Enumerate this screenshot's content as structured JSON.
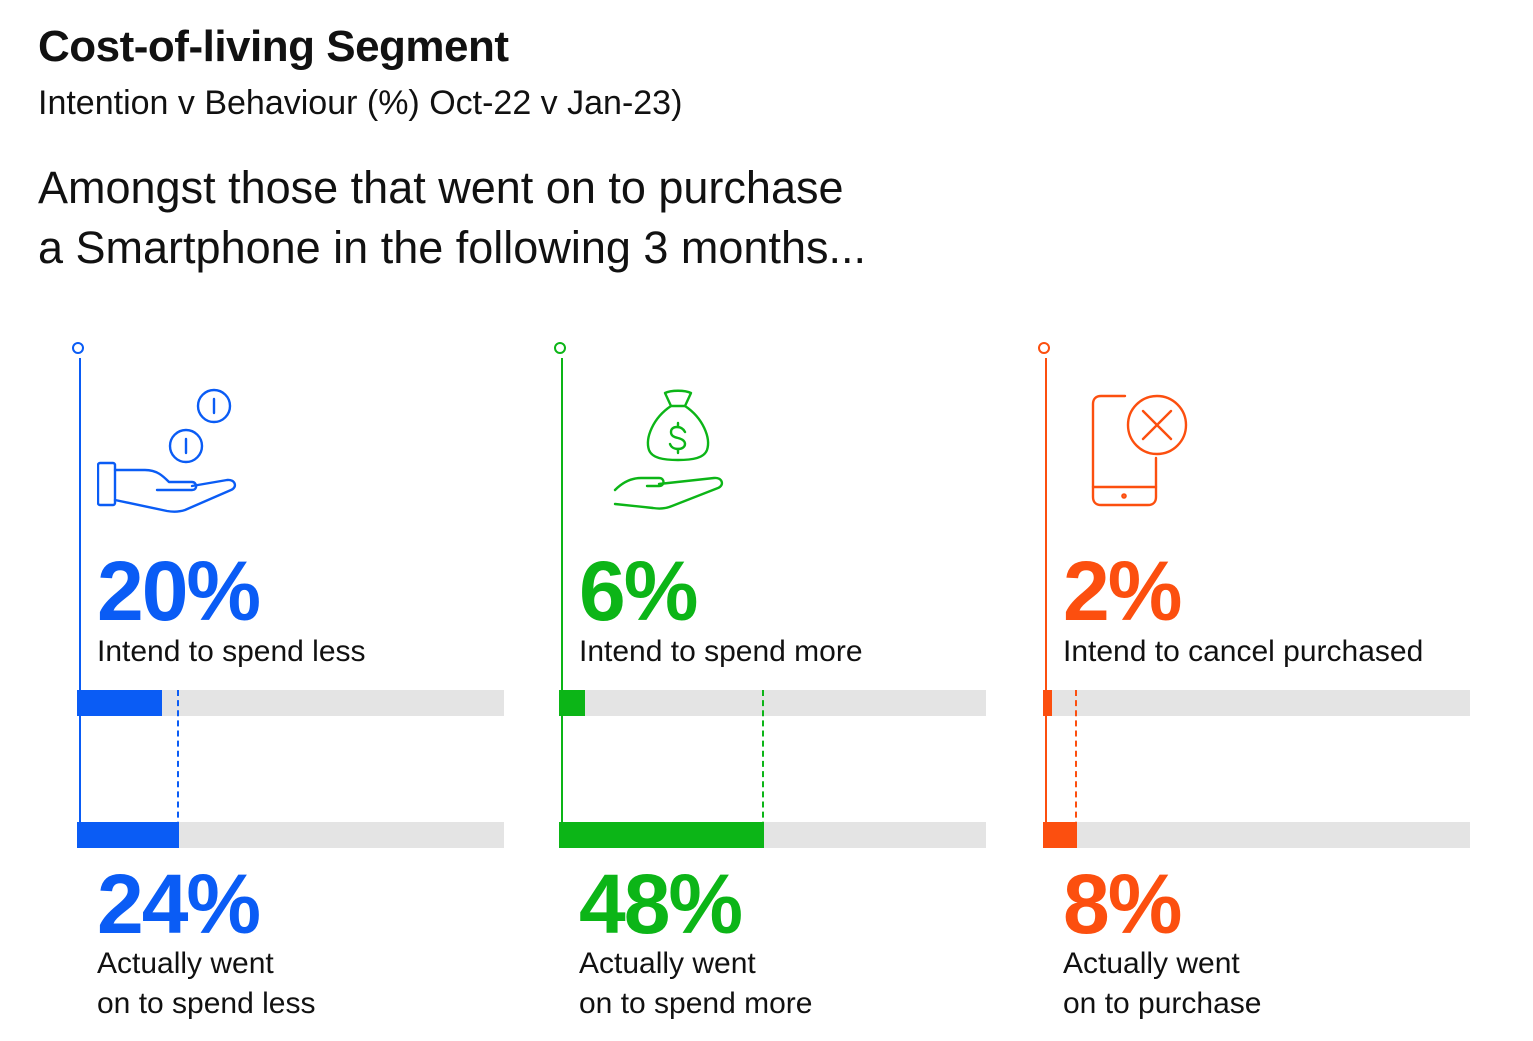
{
  "title": "Cost-of-living Segment",
  "subtitle": "Intention v Behaviour (%) Oct-22 v Jan-23)",
  "lead": {
    "line1": "Amongst those that went on to purchase",
    "line2": "a Smartphone in the following 3 months..."
  },
  "colors": {
    "blue": "#0a5cf5",
    "green": "#0cb517",
    "orange": "#fc4f0f",
    "track": "#e4e4e4"
  },
  "panels": [
    {
      "icon": "coins-hand-icon",
      "color": "#0a5cf5",
      "intent_value": "20%",
      "intent_label": "Intend to spend less",
      "actual_value": "24%",
      "actual_label_1": "Actually went",
      "actual_label_2": "on to spend less"
    },
    {
      "icon": "money-bag-hand-icon",
      "color": "#0cb517",
      "intent_value": "6%",
      "intent_label": "Intend to spend more",
      "actual_value": "48%",
      "actual_label_1": "Actually went",
      "actual_label_2": "on to spend more"
    },
    {
      "icon": "phone-cancel-icon",
      "color": "#fc4f0f",
      "intent_value": "2%",
      "intent_label": "Intend to cancel purchased",
      "actual_value": "8%",
      "actual_label_1": "Actually went",
      "actual_label_2": "on to purchase"
    }
  ],
  "chart_data": {
    "type": "bar",
    "categories": [
      "Spend less",
      "Spend more",
      "Cancel / purchase"
    ],
    "series": [
      {
        "name": "",
        "values": [
          20,
          6,
          2
        ]
      },
      {
        "name": "",
        "values": [
          24,
          48,
          8
        ]
      }
    ],
    "ylim": [
      0,
      100
    ],
    "grid": false
  }
}
